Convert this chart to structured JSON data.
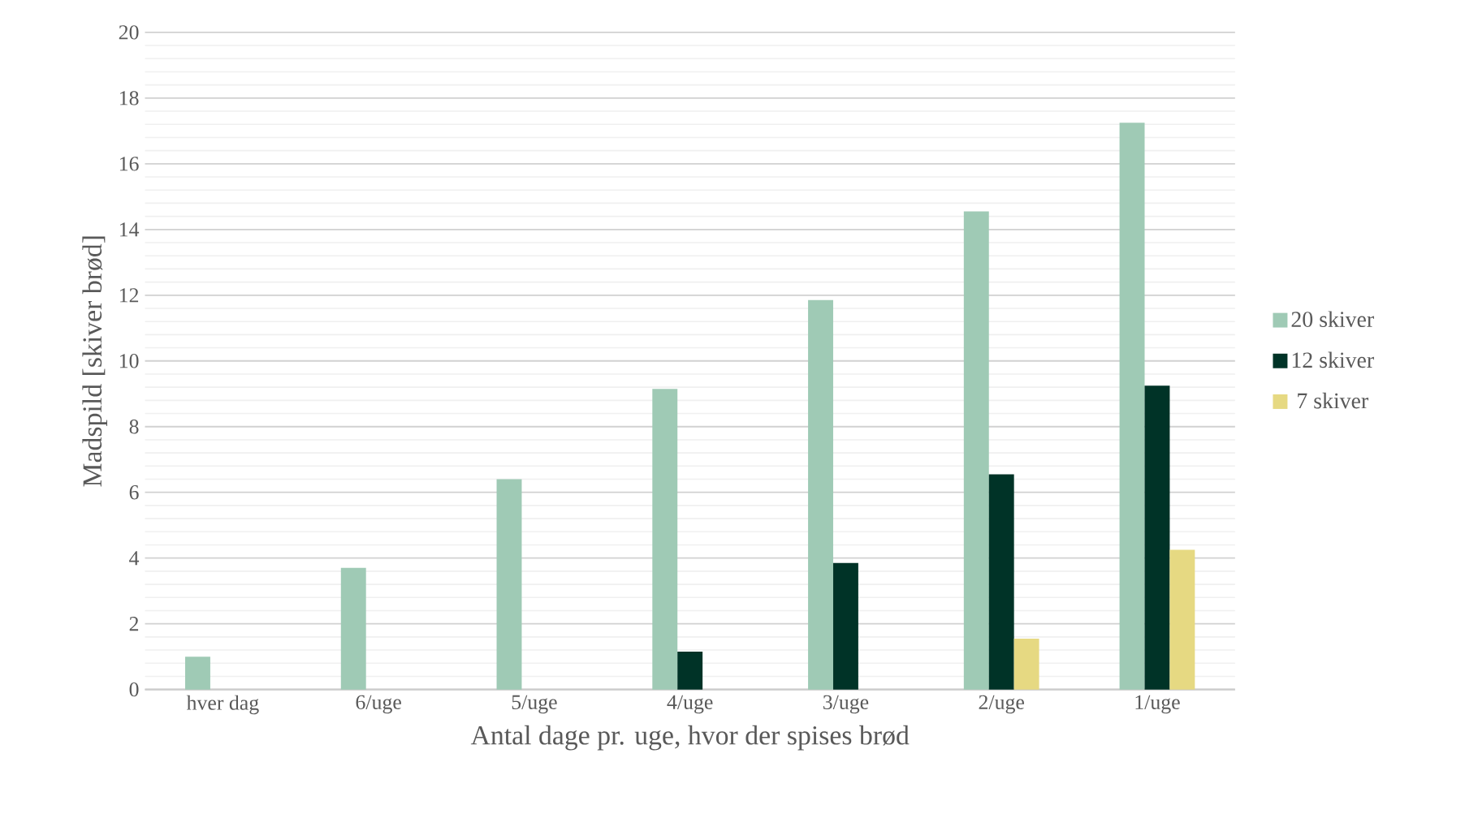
{
  "chart_data": {
    "type": "bar",
    "xlabel": "Antal dage pr. uge, hvor der spises brød",
    "ylabel": "Madspild [skiver brød]",
    "categories": [
      "hver dag",
      "6/uge",
      "5/uge",
      "4/uge",
      "3/uge",
      "2/uge",
      "1/uge"
    ],
    "series": [
      {
        "name": "20 skiver",
        "color": "#9fcab5",
        "values": [
          1.0,
          3.7,
          6.4,
          9.15,
          11.85,
          14.55,
          17.25
        ]
      },
      {
        "name": "12 skiver",
        "color": "#003327",
        "values": [
          null,
          null,
          null,
          1.15,
          3.85,
          6.55,
          9.25
        ]
      },
      {
        "name": "7 skiver",
        "color": "#e6d982",
        "values": [
          null,
          null,
          null,
          null,
          null,
          1.55,
          4.25
        ]
      }
    ],
    "ylim": [
      0,
      20
    ],
    "yticks": [
      0,
      2,
      4,
      6,
      8,
      10,
      12,
      14,
      16,
      18,
      20
    ],
    "grid": "y",
    "legend": "right"
  }
}
